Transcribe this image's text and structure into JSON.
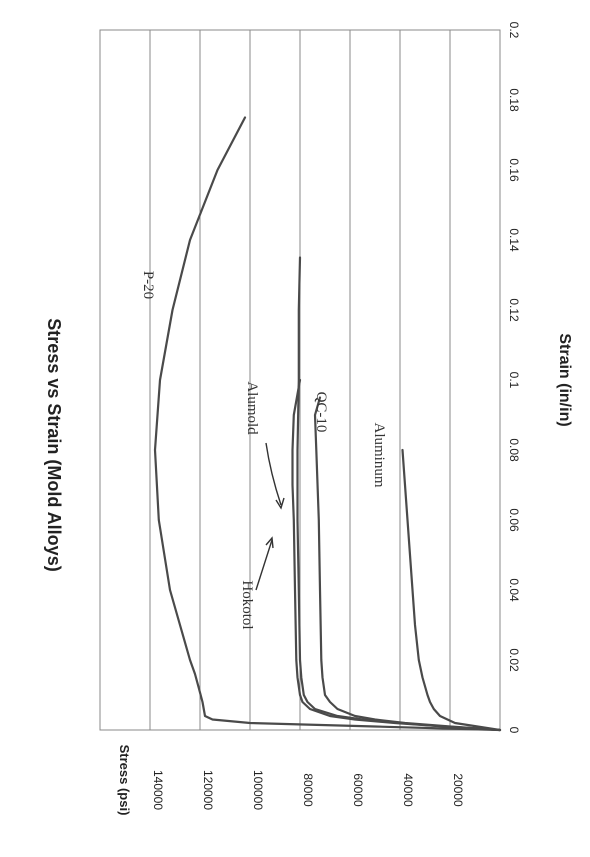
{
  "chart_data": {
    "type": "line",
    "title": "Stress vs Strain (Mold Alloys)",
    "xlabel": "Strain (in/in)",
    "ylabel": "Stress (psi)",
    "xlim": [
      0,
      0.2
    ],
    "ylim": [
      0,
      160000
    ],
    "x_ticks": [
      "0",
      "0.02",
      "0.04",
      "0.06",
      "0.08",
      "0.1",
      "0.12",
      "0.14",
      "0.16",
      "0.18",
      "0.2"
    ],
    "y_ticks": [
      "20000",
      "40000",
      "60000",
      "80000",
      "100000",
      "120000",
      "140000"
    ],
    "grid": "horizontal",
    "orientation": "rotated 90 degrees clockwise",
    "series": [
      {
        "name": "P-20",
        "x": [
          0,
          0.001,
          0.002,
          0.003,
          0.004,
          0.008,
          0.012,
          0.016,
          0.02,
          0.03,
          0.04,
          0.06,
          0.08,
          0.1,
          0.12,
          0.14,
          0.16,
          0.175
        ],
        "y": [
          0,
          50000,
          100000,
          115000,
          118000,
          119000,
          120500,
          122000,
          124000,
          128000,
          132000,
          136500,
          138000,
          136000,
          131000,
          124000,
          113000,
          102000
        ]
      },
      {
        "name": "Alumold",
        "x": [
          0,
          0.001,
          0.002,
          0.003,
          0.004,
          0.006,
          0.008,
          0.01,
          0.015,
          0.02,
          0.04,
          0.06,
          0.08,
          0.1,
          0.12,
          0.135
        ],
        "y": [
          0,
          22000,
          40000,
          55000,
          65000,
          74000,
          77000,
          78500,
          79500,
          80000,
          80500,
          81000,
          81000,
          80500,
          80500,
          80000
        ]
      },
      {
        "name": "Hokotol",
        "x": [
          0,
          0.001,
          0.002,
          0.003,
          0.004,
          0.006,
          0.008,
          0.01,
          0.015,
          0.02,
          0.04,
          0.06,
          0.07,
          0.08,
          0.09,
          0.1
        ],
        "y": [
          0,
          22000,
          42000,
          58000,
          68000,
          76000,
          79000,
          80000,
          81000,
          81500,
          82000,
          82500,
          83000,
          83000,
          82500,
          80000
        ]
      },
      {
        "name": "QC-10",
        "x": [
          0,
          0.001,
          0.002,
          0.003,
          0.004,
          0.006,
          0.008,
          0.01,
          0.015,
          0.02,
          0.04,
          0.06,
          0.08,
          0.09,
          0.095
        ],
        "y": [
          0,
          20000,
          38000,
          50000,
          58000,
          65000,
          68000,
          70000,
          71000,
          71500,
          72000,
          72500,
          73500,
          74000,
          72000
        ]
      },
      {
        "name": "Aluminum",
        "x": [
          0,
          0.002,
          0.004,
          0.006,
          0.008,
          0.01,
          0.015,
          0.02,
          0.03,
          0.04,
          0.05,
          0.06,
          0.07,
          0.08
        ],
        "y": [
          0,
          18000,
          24000,
          26500,
          28000,
          29000,
          31000,
          32500,
          34000,
          35000,
          36000,
          37000,
          38000,
          39000
        ]
      }
    ]
  }
}
